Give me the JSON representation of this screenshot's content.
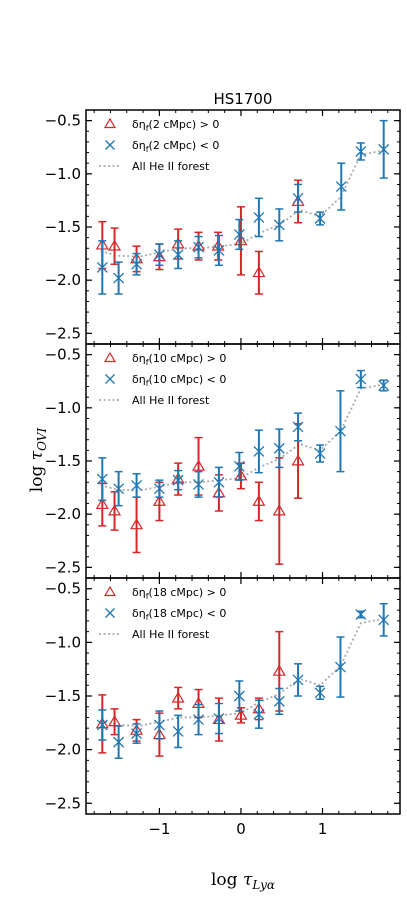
{
  "chart_data": {
    "type": "scatter",
    "title": "HS1700",
    "xlabel": "log τ_{Lyα}",
    "ylabel": "log τ_{OVI}",
    "xlim": [
      -1.9,
      1.95
    ],
    "ylim": [
      -2.6,
      -0.4
    ],
    "xticks": [
      -1,
      0,
      1
    ],
    "xtick_labels": [
      "−1",
      "0",
      "1"
    ],
    "yticks_panel1": [
      -2.5,
      -2.0,
      -1.5,
      -1.0,
      -0.5
    ],
    "ytick_labels_panel1": [
      "−2.5",
      "−2.0",
      "−1.5",
      "−1.0",
      "−0.5"
    ],
    "yticks_lower_panels": [
      -2.5,
      -2.0,
      -1.5,
      -1.0,
      -0.5
    ],
    "ytick_labels_lower_panels": [
      "−2.5",
      "−2.0",
      "−1.5",
      "−1.0",
      "−0.5"
    ],
    "colors": {
      "positive": "#d62728",
      "negative": "#1f77b4",
      "forest": "#aaaaaa"
    },
    "panels": [
      {
        "legend": {
          "positive": "δη_f(2 cMpc) > 0",
          "negative": "δη_f(2 cMpc) < 0",
          "forest": "All He II forest"
        },
        "series": [
          {
            "key": "positive",
            "marker": "triangle",
            "points": [
              {
                "x": -1.7,
                "y": -1.67,
                "err": 0.22
              },
              {
                "x": -1.55,
                "y": -1.68,
                "err": 0.17
              },
              {
                "x": -1.28,
                "y": -1.8,
                "err": 0.12
              },
              {
                "x": -1.0,
                "y": -1.78,
                "err": 0.12
              },
              {
                "x": -0.77,
                "y": -1.66,
                "err": 0.14
              },
              {
                "x": -0.52,
                "y": -1.68,
                "err": 0.13
              },
              {
                "x": -0.28,
                "y": -1.68,
                "err": 0.13
              },
              {
                "x": 0.0,
                "y": -1.63,
                "err": 0.32
              },
              {
                "x": 0.22,
                "y": -1.93,
                "err": 0.2
              },
              {
                "x": 0.7,
                "y": -1.26,
                "err": 0.2
              }
            ]
          },
          {
            "key": "negative",
            "marker": "x",
            "points": [
              {
                "x": -1.7,
                "y": -1.88,
                "err": 0.25
              },
              {
                "x": -1.5,
                "y": -1.98,
                "err": 0.15
              },
              {
                "x": -1.28,
                "y": -1.85,
                "err": 0.1
              },
              {
                "x": -1.0,
                "y": -1.76,
                "err": 0.1
              },
              {
                "x": -0.77,
                "y": -1.76,
                "err": 0.13
              },
              {
                "x": -0.52,
                "y": -1.69,
                "err": 0.1
              },
              {
                "x": -0.27,
                "y": -1.72,
                "err": 0.14
              },
              {
                "x": -0.02,
                "y": -1.57,
                "err": 0.14
              },
              {
                "x": 0.22,
                "y": -1.41,
                "err": 0.18
              },
              {
                "x": 0.47,
                "y": -1.48,
                "err": 0.15
              },
              {
                "x": 0.7,
                "y": -1.23,
                "err": 0.13
              },
              {
                "x": 0.97,
                "y": -1.42,
                "err": 0.06
              },
              {
                "x": 1.23,
                "y": -1.12,
                "err": 0.22
              },
              {
                "x": 1.47,
                "y": -0.79,
                "err": 0.08
              },
              {
                "x": 1.75,
                "y": -0.77,
                "err": 0.27
              }
            ]
          }
        ],
        "forest_curve": {
          "x": [
            -1.72,
            -1.5,
            -1.25,
            -1.0,
            -0.75,
            -0.5,
            -0.25,
            0.0,
            0.22,
            0.47,
            0.72,
            0.97,
            1.22,
            1.47,
            1.75
          ],
          "y": [
            -1.73,
            -1.77,
            -1.78,
            -1.74,
            -1.7,
            -1.7,
            -1.68,
            -1.66,
            -1.56,
            -1.48,
            -1.34,
            -1.4,
            -1.22,
            -0.82,
            -0.78
          ]
        }
      },
      {
        "legend": {
          "positive": "δη_f(10 cMpc) > 0",
          "negative": "δη_f(10 cMpc) < 0",
          "forest": "All He II forest"
        },
        "series": [
          {
            "key": "positive",
            "marker": "triangle",
            "points": [
              {
                "x": -1.7,
                "y": -1.91,
                "err": 0.2
              },
              {
                "x": -1.55,
                "y": -1.97,
                "err": 0.18
              },
              {
                "x": -1.28,
                "y": -2.1,
                "err": 0.26
              },
              {
                "x": -1.0,
                "y": -1.88,
                "err": 0.18
              },
              {
                "x": -0.77,
                "y": -1.67,
                "err": 0.15
              },
              {
                "x": -0.52,
                "y": -1.55,
                "err": 0.27
              },
              {
                "x": -0.27,
                "y": -1.8,
                "err": 0.17
              },
              {
                "x": 0.0,
                "y": -1.64,
                "err": 0.12
              },
              {
                "x": 0.22,
                "y": -1.88,
                "err": 0.18
              },
              {
                "x": 0.47,
                "y": -1.97,
                "err": 0.5
              },
              {
                "x": 0.7,
                "y": -1.5,
                "err": 0.35
              }
            ]
          },
          {
            "key": "negative",
            "marker": "x",
            "points": [
              {
                "x": -1.7,
                "y": -1.67,
                "err": 0.2
              },
              {
                "x": -1.5,
                "y": -1.76,
                "err": 0.16
              },
              {
                "x": -1.28,
                "y": -1.73,
                "err": 0.11
              },
              {
                "x": -1.0,
                "y": -1.76,
                "err": 0.08
              },
              {
                "x": -0.77,
                "y": -1.68,
                "err": 0.09
              },
              {
                "x": -0.52,
                "y": -1.72,
                "err": 0.12
              },
              {
                "x": -0.27,
                "y": -1.7,
                "err": 0.14
              },
              {
                "x": -0.02,
                "y": -1.55,
                "err": 0.13
              },
              {
                "x": 0.22,
                "y": -1.41,
                "err": 0.2
              },
              {
                "x": 0.47,
                "y": -1.38,
                "err": 0.18
              },
              {
                "x": 0.7,
                "y": -1.18,
                "err": 0.13
              },
              {
                "x": 0.97,
                "y": -1.43,
                "err": 0.08
              },
              {
                "x": 1.22,
                "y": -1.22,
                "err": 0.38
              },
              {
                "x": 1.47,
                "y": -0.73,
                "err": 0.08
              },
              {
                "x": 1.75,
                "y": -0.79,
                "err": 0.05
              }
            ]
          }
        ],
        "forest_curve": {
          "x": [
            -1.72,
            -1.5,
            -1.25,
            -1.0,
            -0.75,
            -0.5,
            -0.25,
            0.0,
            0.22,
            0.47,
            0.72,
            0.97,
            1.22,
            1.47,
            1.75
          ],
          "y": [
            -1.73,
            -1.77,
            -1.78,
            -1.74,
            -1.7,
            -1.7,
            -1.68,
            -1.66,
            -1.56,
            -1.48,
            -1.34,
            -1.4,
            -1.22,
            -0.82,
            -0.78
          ]
        }
      },
      {
        "legend": {
          "positive": "δη_f(18 cMpc) > 0",
          "negative": "δη_f(18 cMpc) < 0",
          "forest": "All He II forest"
        },
        "series": [
          {
            "key": "positive",
            "marker": "triangle",
            "points": [
              {
                "x": -1.7,
                "y": -1.76,
                "err": 0.27
              },
              {
                "x": -1.55,
                "y": -1.74,
                "err": 0.12
              },
              {
                "x": -1.28,
                "y": -1.82,
                "err": 0.1
              },
              {
                "x": -1.0,
                "y": -1.86,
                "err": 0.2
              },
              {
                "x": -0.77,
                "y": -1.52,
                "err": 0.1
              },
              {
                "x": -0.52,
                "y": -1.57,
                "err": 0.13
              },
              {
                "x": -0.27,
                "y": -1.72,
                "err": 0.2
              },
              {
                "x": 0.0,
                "y": -1.68,
                "err": 0.07
              },
              {
                "x": 0.22,
                "y": -1.62,
                "err": 0.1
              },
              {
                "x": 0.47,
                "y": -1.27,
                "err": 0.37
              }
            ]
          },
          {
            "key": "negative",
            "marker": "x",
            "points": [
              {
                "x": -1.7,
                "y": -1.77,
                "err": 0.14
              },
              {
                "x": -1.5,
                "y": -1.93,
                "err": 0.15
              },
              {
                "x": -1.28,
                "y": -1.85,
                "err": 0.09
              },
              {
                "x": -1.0,
                "y": -1.77,
                "err": 0.13
              },
              {
                "x": -0.77,
                "y": -1.83,
                "err": 0.15
              },
              {
                "x": -0.52,
                "y": -1.72,
                "err": 0.14
              },
              {
                "x": -0.27,
                "y": -1.71,
                "err": 0.14
              },
              {
                "x": -0.02,
                "y": -1.5,
                "err": 0.14
              },
              {
                "x": 0.22,
                "y": -1.67,
                "err": 0.13
              },
              {
                "x": 0.47,
                "y": -1.55,
                "err": 0.12
              },
              {
                "x": 0.7,
                "y": -1.35,
                "err": 0.15
              },
              {
                "x": 0.97,
                "y": -1.47,
                "err": 0.06
              },
              {
                "x": 1.22,
                "y": -1.23,
                "err": 0.28
              },
              {
                "x": 1.47,
                "y": -0.74,
                "err": 0.03
              },
              {
                "x": 1.75,
                "y": -0.79,
                "err": 0.15
              }
            ]
          }
        ],
        "forest_curve": {
          "x": [
            -1.72,
            -1.5,
            -1.25,
            -1.0,
            -0.75,
            -0.5,
            -0.25,
            0.0,
            0.22,
            0.47,
            0.72,
            0.97,
            1.22,
            1.47,
            1.75
          ],
          "y": [
            -1.73,
            -1.77,
            -1.78,
            -1.74,
            -1.7,
            -1.7,
            -1.68,
            -1.66,
            -1.56,
            -1.48,
            -1.34,
            -1.4,
            -1.22,
            -0.82,
            -0.78
          ]
        }
      }
    ]
  }
}
